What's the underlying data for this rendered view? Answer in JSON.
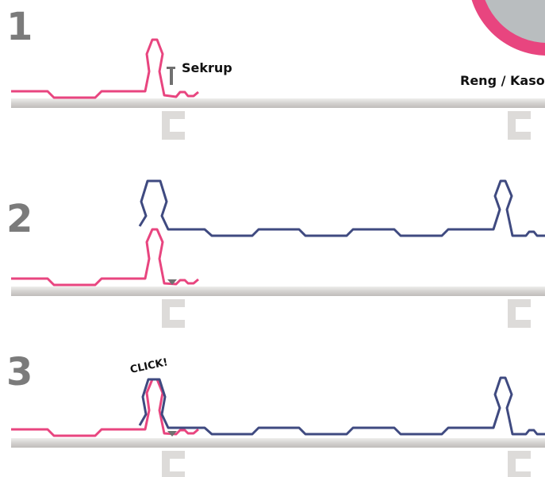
{
  "steps": [
    {
      "number": "1"
    },
    {
      "number": "2"
    },
    {
      "number": "3"
    }
  ],
  "labels": {
    "screw": "Sekrup",
    "batten": "Reng / Kaso",
    "click": "CLICK!"
  },
  "colors": {
    "pink_sheet": "#e8457f",
    "blue_sheet": "#3f4a80",
    "batten": "#d2d0ce",
    "bracket": "#dddbd9",
    "screw": "#707070",
    "number": "#7b7b7b",
    "decor_pink": "#e8457f",
    "decor_gray": "#b9bdbf"
  },
  "icons": {
    "screw": "screw-icon",
    "bracket": "c-bracket-icon",
    "decor": "corner-circle-decoration"
  }
}
